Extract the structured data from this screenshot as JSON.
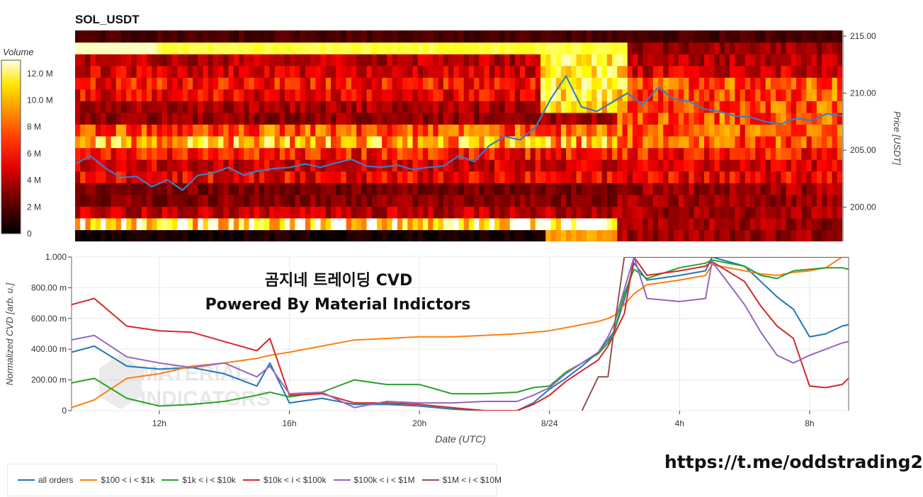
{
  "chart_data": [
    {
      "type": "heatmap",
      "title": "SOL_USDT",
      "colorbar": {
        "title": "Volume",
        "ticks": [
          "0",
          "2 M",
          "4 M",
          "6 M",
          "8 M",
          "10.0 M",
          "12.0 M"
        ],
        "range": [
          0,
          13
        ],
        "colorscale": "hot"
      },
      "y_axis": {
        "label": "Price [USDT]",
        "side": "right",
        "range": [
          197,
          215.5
        ],
        "ticks": [
          "200.00",
          "205.00",
          "210.00",
          "215.00"
        ]
      },
      "price_line": {
        "color": "#3b7dc4",
        "x": [
          0,
          6,
          12,
          18,
          24,
          30,
          36,
          42,
          48,
          54,
          60,
          66,
          72,
          78,
          84,
          90,
          96,
          102,
          108,
          114,
          120,
          126,
          132,
          138,
          144,
          150,
          156,
          162,
          168,
          174,
          180,
          186,
          192,
          198,
          204,
          210,
          216,
          222,
          228,
          234,
          240,
          246,
          252,
          258,
          264,
          270,
          276,
          282,
          288,
          294,
          300
        ],
        "y": [
          203.8,
          204.5,
          203.4,
          202.6,
          202.7,
          201.8,
          202.4,
          201.5,
          202.8,
          203.0,
          203.5,
          202.8,
          203.2,
          203.4,
          203.5,
          203.8,
          203.5,
          203.9,
          204.2,
          203.6,
          203.5,
          203.7,
          203.3,
          203.5,
          203.6,
          204.5,
          204.0,
          205.4,
          206.2,
          205.9,
          207.0,
          209.5,
          211.5,
          208.8,
          208.4,
          209.2,
          210.0,
          209.0,
          210.5,
          209.5,
          209.3,
          208.6,
          208.4,
          208.0,
          207.9,
          207.5,
          207.3,
          207.8,
          207.6,
          208.2,
          208.0
        ]
      }
    },
    {
      "type": "line",
      "ylabel": "Normalized CVD [arb. u.]",
      "xlabel": "Date (UTC)",
      "ylim": [
        0,
        1
      ],
      "y_ticks": [
        "0",
        "200.00 m",
        "400.00 m",
        "600.00 m",
        "800.00 m",
        "1.000"
      ],
      "x_ticks": [
        "12h",
        "16h",
        "20h",
        "8/24",
        "4h",
        "8h"
      ],
      "x_tick_hours": [
        12,
        16,
        20,
        24,
        28,
        32
      ],
      "x_range_hours": [
        9.3,
        33.2
      ],
      "x": [
        9.3,
        10,
        11,
        12,
        13,
        14,
        15,
        15.4,
        16,
        17,
        18,
        19,
        20,
        21,
        22,
        23,
        23.5,
        24,
        24.5,
        25,
        25.5,
        25.8,
        26,
        26.3,
        26.6,
        27,
        28,
        28.8,
        29,
        30,
        30.5,
        31,
        31.5,
        32,
        32.5,
        33,
        33.2
      ],
      "series": [
        {
          "name": "all orders",
          "color": "#1f77b4",
          "values": [
            0.38,
            0.42,
            0.29,
            0.27,
            0.28,
            0.24,
            0.16,
            0.31,
            0.05,
            0.08,
            0.04,
            0.04,
            0.03,
            0.01,
            0.0,
            0.0,
            0.05,
            0.14,
            0.21,
            0.29,
            0.38,
            0.46,
            0.52,
            0.72,
            0.96,
            0.85,
            0.88,
            0.91,
            1.0,
            0.94,
            0.84,
            0.74,
            0.66,
            0.48,
            0.5,
            0.55,
            0.56
          ]
        },
        {
          "name": "$100 < i < $1k",
          "color": "#ff7f0e",
          "values": [
            0.02,
            0.07,
            0.21,
            0.24,
            0.29,
            0.31,
            0.34,
            0.36,
            0.38,
            0.42,
            0.46,
            0.47,
            0.48,
            0.48,
            0.49,
            0.5,
            0.51,
            0.52,
            0.54,
            0.56,
            0.58,
            0.6,
            0.62,
            0.69,
            0.76,
            0.82,
            0.85,
            0.88,
            0.95,
            0.91,
            0.89,
            0.88,
            0.9,
            0.91,
            0.93,
            1.0,
            1.0
          ]
        },
        {
          "name": "$1k < i < $10k",
          "color": "#2ca02c",
          "values": [
            0.18,
            0.21,
            0.08,
            0.03,
            0.04,
            0.06,
            0.1,
            0.12,
            0.09,
            0.12,
            0.2,
            0.17,
            0.17,
            0.11,
            0.11,
            0.12,
            0.15,
            0.16,
            0.25,
            0.31,
            0.37,
            0.44,
            0.52,
            0.76,
            0.92,
            0.86,
            0.93,
            0.96,
            0.98,
            0.94,
            0.88,
            0.86,
            0.91,
            0.92,
            0.93,
            0.93,
            0.92
          ]
        },
        {
          "name": "$10k < i < $100k",
          "color": "#d62728",
          "values": [
            0.69,
            0.73,
            0.55,
            0.52,
            0.51,
            0.45,
            0.39,
            0.47,
            0.1,
            0.11,
            0.05,
            0.05,
            0.04,
            0.02,
            0.0,
            0.0,
            0.04,
            0.1,
            0.19,
            0.26,
            0.33,
            0.42,
            0.5,
            0.63,
            1.0,
            0.88,
            0.91,
            0.94,
            0.97,
            0.84,
            0.68,
            0.55,
            0.47,
            0.16,
            0.15,
            0.17,
            0.21
          ]
        },
        {
          "name": "$100k < i < $1M",
          "color": "#9467bd",
          "values": [
            0.46,
            0.49,
            0.35,
            0.31,
            0.28,
            0.31,
            0.22,
            0.29,
            0.11,
            0.12,
            0.02,
            0.06,
            0.05,
            0.05,
            0.06,
            0.06,
            0.1,
            0.15,
            0.24,
            0.31,
            0.38,
            0.48,
            0.57,
            0.79,
            1.0,
            0.73,
            0.71,
            0.73,
            0.97,
            0.69,
            0.51,
            0.36,
            0.31,
            0.36,
            0.4,
            0.44,
            0.45
          ]
        },
        {
          "name": "$1M < i < $10M",
          "color": "#8c564b",
          "values": [
            null,
            null,
            null,
            null,
            null,
            null,
            null,
            null,
            null,
            null,
            null,
            null,
            null,
            null,
            null,
            null,
            null,
            null,
            null,
            0.0,
            0.22,
            0.22,
            0.55,
            1.0,
            1.0,
            1.0,
            1.0,
            1.0,
            1.0,
            1.0,
            1.0,
            1.0,
            1.0,
            1.0,
            1.0,
            1.0,
            1.0
          ]
        }
      ]
    }
  ],
  "watermark": {
    "line1": "MATERIAL",
    "line2": "INDICATORS"
  },
  "overlay": {
    "title_line1": "곰지네 트레이딩 CVD",
    "title_line2": "Powered By Material Indictors"
  },
  "footer_link": "https://t.me/oddstrading2"
}
